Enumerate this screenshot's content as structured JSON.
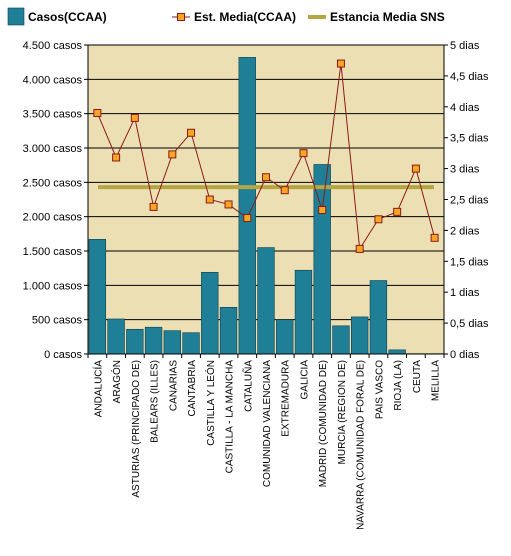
{
  "chart_data": {
    "type": "bar",
    "title": "",
    "legend_position": "top",
    "grid": true,
    "categories": [
      "ANDALUCÍA",
      "ARAGÓN",
      "ASTURIAS (PRINCIPADO DE)",
      "BALEARS (ILLES)",
      "CANARIAS",
      "CANTABRIA",
      "CASTILLA Y LEÓN",
      "CASTILLA - LA MANCHA",
      "CATALUÑA",
      "COMUNIDAD VALENCIANA",
      "EXTREMADURA",
      "GALICIA",
      "MADRID (COMUNIDAD DE)",
      "MURCIA (REGION DE)",
      "NAVARRA (COMUNIDAD FORAL DE)",
      "PAIS VASCO",
      "RIOJA (LA)",
      "CEUTA",
      "MELILLA"
    ],
    "series": [
      {
        "name": "Casos(CCAA)",
        "type": "bar",
        "axis": "left",
        "color": "#1f7f96",
        "values": [
          1670,
          510,
          360,
          390,
          340,
          310,
          1190,
          680,
          4320,
          1550,
          500,
          1220,
          2760,
          410,
          540,
          1070,
          60,
          5,
          5
        ]
      },
      {
        "name": "Est. Media(CCAA)",
        "type": "line",
        "axis": "right",
        "color": "#8b1a1a",
        "marker_color": "#f5a623",
        "values": [
          3.9,
          3.18,
          3.82,
          2.38,
          3.23,
          3.58,
          2.5,
          2.42,
          2.2,
          2.86,
          2.65,
          3.25,
          2.33,
          4.7,
          1.7,
          2.18,
          2.3,
          3.0,
          1.88
        ]
      },
      {
        "name": "Estancia Media SNS",
        "type": "reference-line",
        "axis": "right",
        "color": "#b5a642",
        "value": 2.7
      }
    ],
    "y_left": {
      "min": 0,
      "max": 4500,
      "step": 500,
      "tick_labels": [
        "0 casos",
        "500 casos",
        "1.000 casos",
        "1.500 casos",
        "2.000 casos",
        "2.500 casos",
        "3.000 casos",
        "3.500 casos",
        "4.000 casos",
        "4.500 casos"
      ]
    },
    "y_right": {
      "min": 0,
      "max": 5,
      "step": 0.5,
      "tick_labels": [
        "0 dias",
        "0,5 dias",
        "1 dias",
        "1,5 dias",
        "2 dias",
        "2,5 dias",
        "3 dias",
        "3,5 dias",
        "4 dias",
        "4,5 dias",
        "5 dias"
      ]
    },
    "colors": {
      "plot_background": "#ecdfb3",
      "gridline": "#000000",
      "bar_outline": "#0e3f4c"
    }
  }
}
